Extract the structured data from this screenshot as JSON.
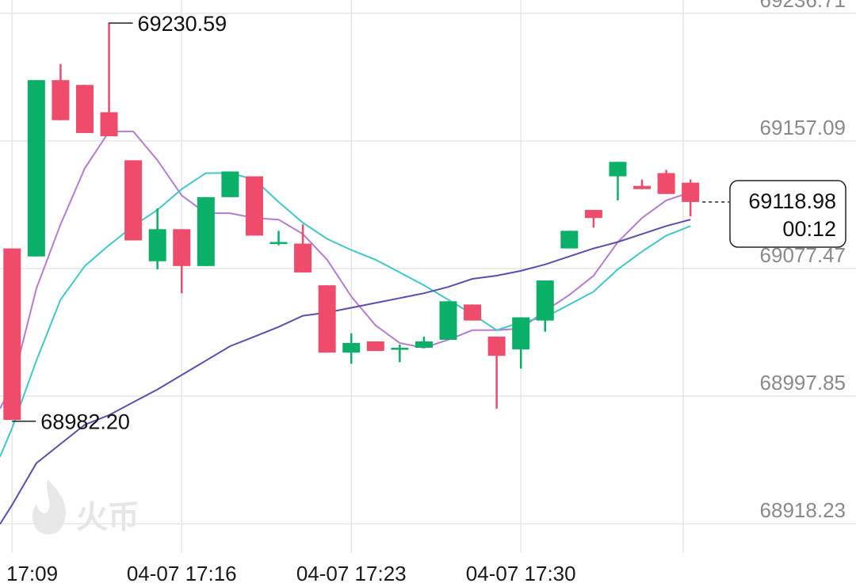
{
  "app": {
    "watermark_text": "火币"
  },
  "chart_data": {
    "type": "candlestick",
    "y_axis": {
      "ticks": [
        "69236.71",
        "69157.09",
        "69077.47",
        "68997.85",
        "68918.23"
      ],
      "tick_values": [
        69236.71,
        69157.09,
        69077.47,
        68997.85,
        68918.23
      ],
      "range": [
        68900,
        69245
      ],
      "position": "right",
      "grid": true
    },
    "x_axis": {
      "ticks": [
        "17:09",
        "04-07 17:16",
        "04-07 17:23",
        "04-07 17:30"
      ],
      "tick_minutes": [
        0,
        7,
        14,
        21
      ],
      "range_minutes": [
        -0.5,
        27.7
      ],
      "grid": true
    },
    "candles": [
      {
        "t": 0,
        "o": 69090,
        "h": 69090,
        "l": 68983,
        "c": 68983
      },
      {
        "t": 1,
        "o": 69085,
        "h": 69195,
        "l": 69085,
        "c": 69195
      },
      {
        "t": 2,
        "o": 69195,
        "h": 69205,
        "l": 69170,
        "c": 69170
      },
      {
        "t": 3,
        "o": 69192,
        "h": 69192,
        "l": 69162,
        "c": 69162
      },
      {
        "t": 4,
        "o": 69175,
        "h": 69231,
        "l": 69160,
        "c": 69160
      },
      {
        "t": 5,
        "o": 69145,
        "h": 69145,
        "l": 69095,
        "c": 69095
      },
      {
        "t": 6,
        "o": 69082,
        "h": 69115,
        "l": 69077,
        "c": 69102
      },
      {
        "t": 7,
        "o": 69102,
        "h": 69102,
        "l": 69062,
        "c": 69079
      },
      {
        "t": 8,
        "o": 69079,
        "h": 69122,
        "l": 69079,
        "c": 69122
      },
      {
        "t": 9,
        "o": 69122,
        "h": 69138,
        "l": 69122,
        "c": 69138
      },
      {
        "t": 10,
        "o": 69135,
        "h": 69135,
        "l": 69098,
        "c": 69098
      },
      {
        "t": 11,
        "o": 69094,
        "h": 69101,
        "l": 69092,
        "c": 69094
      },
      {
        "t": 12,
        "o": 69093,
        "h": 69105,
        "l": 69075,
        "c": 69075
      },
      {
        "t": 13,
        "o": 69067,
        "h": 69067,
        "l": 69025,
        "c": 69025
      },
      {
        "t": 14,
        "o": 69025,
        "h": 69037,
        "l": 69018,
        "c": 69031
      },
      {
        "t": 15,
        "o": 69032,
        "h": 69032,
        "l": 69026,
        "c": 69026
      },
      {
        "t": 16,
        "o": 69027,
        "h": 69030,
        "l": 69019,
        "c": 69028
      },
      {
        "t": 17,
        "o": 69028,
        "h": 69035,
        "l": 69028,
        "c": 69032
      },
      {
        "t": 18,
        "o": 69033,
        "h": 69057,
        "l": 69033,
        "c": 69057
      },
      {
        "t": 19,
        "o": 69055,
        "h": 69055,
        "l": 69045,
        "c": 69045
      },
      {
        "t": 20,
        "o": 69035,
        "h": 69035,
        "l": 68990,
        "c": 69023
      },
      {
        "t": 21,
        "o": 69027,
        "h": 69045,
        "l": 69015,
        "c": 69047
      },
      {
        "t": 22,
        "o": 69045,
        "h": 69070,
        "l": 69038,
        "c": 69070
      },
      {
        "t": 23,
        "o": 69090,
        "h": 69101,
        "l": 69090,
        "c": 69101
      },
      {
        "t": 24,
        "o": 69114,
        "h": 69114,
        "l": 69103,
        "c": 69109
      },
      {
        "t": 25,
        "o": 69135,
        "h": 69144,
        "l": 69120,
        "c": 69144
      },
      {
        "t": 26,
        "o": 69129,
        "h": 69133,
        "l": 69127,
        "c": 69127
      },
      {
        "t": 27,
        "o": 69137,
        "h": 69139,
        "l": 69124,
        "c": 69124
      },
      {
        "t": 28,
        "o": 69131,
        "h": 69133,
        "l": 69110,
        "c": 69119
      }
    ],
    "moving_averages": [
      {
        "color": "#b57cd1",
        "points": [
          [
            -0.5,
            68990
          ],
          [
            0,
            69005
          ],
          [
            1,
            69065
          ],
          [
            2,
            69105
          ],
          [
            3,
            69140
          ],
          [
            4,
            69163
          ],
          [
            5,
            69163
          ],
          [
            6,
            69145
          ],
          [
            7,
            69123
          ],
          [
            8,
            69112
          ],
          [
            9,
            69112
          ],
          [
            10,
            69109
          ],
          [
            11,
            69108
          ],
          [
            12,
            69099
          ],
          [
            13,
            69083
          ],
          [
            14,
            69060
          ],
          [
            15,
            69042
          ],
          [
            16,
            69031
          ],
          [
            17,
            69028
          ],
          [
            18,
            69033
          ],
          [
            19,
            69039
          ],
          [
            20,
            69039
          ],
          [
            21,
            69040
          ],
          [
            22,
            69051
          ],
          [
            23,
            69061
          ],
          [
            24,
            69073
          ],
          [
            25,
            69094
          ],
          [
            26,
            69109
          ],
          [
            27,
            69120
          ],
          [
            28,
            69125
          ]
        ]
      },
      {
        "color": "#3fc8cb",
        "points": [
          [
            -0.5,
            68960
          ],
          [
            0,
            68978
          ],
          [
            1,
            69020
          ],
          [
            2,
            69058
          ],
          [
            3,
            69079
          ],
          [
            4,
            69092
          ],
          [
            5,
            69104
          ],
          [
            6,
            69114
          ],
          [
            7,
            69127
          ],
          [
            8,
            69137
          ],
          [
            9,
            69137
          ],
          [
            10,
            69133
          ],
          [
            11,
            69119
          ],
          [
            12,
            69106
          ],
          [
            13,
            69096
          ],
          [
            14,
            69089
          ],
          [
            15,
            69083
          ],
          [
            16,
            69075
          ],
          [
            17,
            69067
          ],
          [
            18,
            69058
          ],
          [
            19,
            69049
          ],
          [
            20,
            69039
          ],
          [
            21,
            69044
          ],
          [
            22,
            69047
          ],
          [
            23,
            69055
          ],
          [
            24,
            69063
          ],
          [
            25,
            69077
          ],
          [
            26,
            69088
          ],
          [
            27,
            69098
          ],
          [
            28,
            69104
          ]
        ]
      },
      {
        "color": "#5a4fb0",
        "points": [
          [
            -0.5,
            68918
          ],
          [
            0,
            68930
          ],
          [
            1,
            68956
          ],
          [
            2,
            68968
          ],
          [
            3,
            68980
          ],
          [
            4,
            68986
          ],
          [
            5,
            68994
          ],
          [
            6,
            69002
          ],
          [
            7,
            69011
          ],
          [
            8,
            69020
          ],
          [
            9,
            69029
          ],
          [
            10,
            69035
          ],
          [
            11,
            69041
          ],
          [
            12,
            69048
          ],
          [
            13,
            69050
          ],
          [
            14,
            69053
          ],
          [
            15,
            69056
          ],
          [
            16,
            69059
          ],
          [
            17,
            69062
          ],
          [
            18,
            69066
          ],
          [
            19,
            69071
          ],
          [
            20,
            69073
          ],
          [
            21,
            69076
          ],
          [
            22,
            69080
          ],
          [
            23,
            69085
          ],
          [
            24,
            69090
          ],
          [
            25,
            69094
          ],
          [
            26,
            69099
          ],
          [
            27,
            69104
          ],
          [
            28,
            69108
          ]
        ]
      }
    ],
    "annotations": {
      "high_label": "69230.59",
      "high_at": {
        "t": 4,
        "v": 69230.59
      },
      "low_label": "68982.20",
      "low_at": {
        "t": 0,
        "v": 68982.2
      },
      "last_price": "69118.98",
      "last_price_value": 69118.98,
      "countdown": "00:12"
    },
    "colors": {
      "up": "#0ab068",
      "down": "#ef4b6b",
      "grid": "#e6e6e6"
    }
  }
}
